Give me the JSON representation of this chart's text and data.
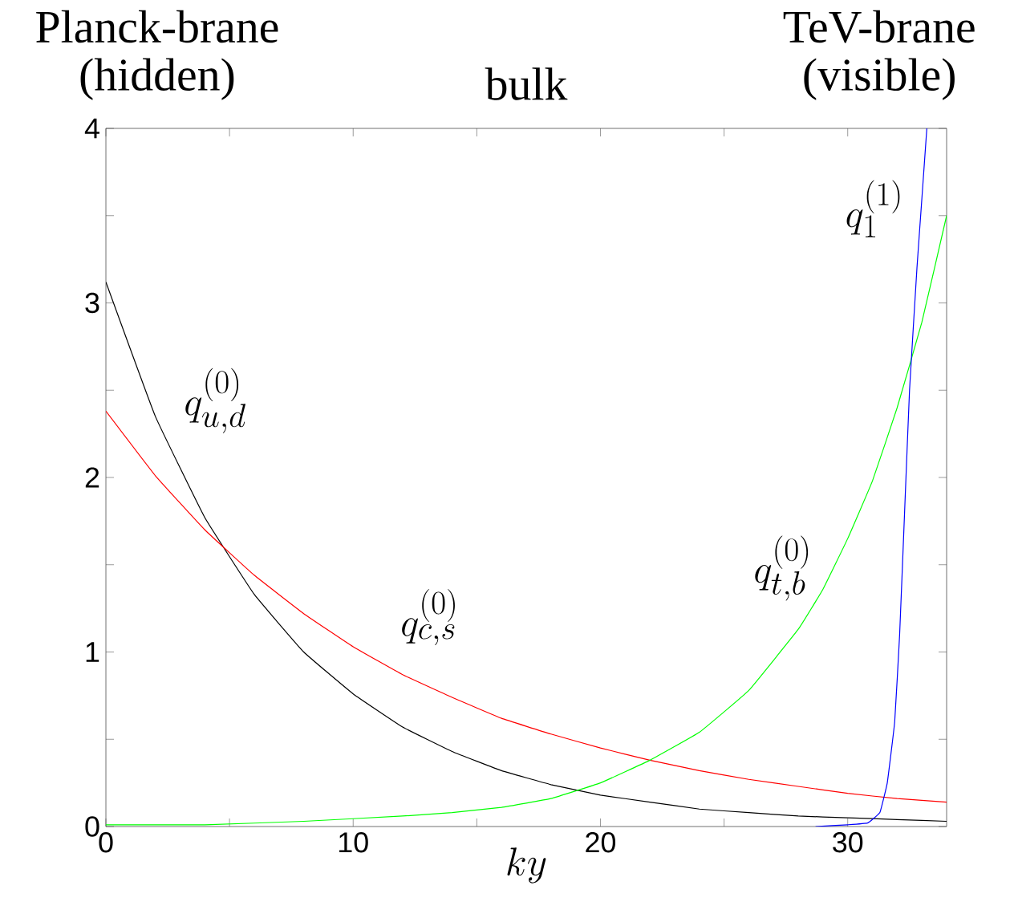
{
  "chart_data": {
    "type": "line",
    "xlabel": "ky",
    "annotations": [
      "Planck-brane (hidden)",
      "bulk",
      "TeV-brane (visible)",
      "q^{(0)}_{u,d}",
      "q^{(0)}_{c,s}",
      "q^{(0)}_{t,b}",
      "q^{(1)}_{1}"
    ],
    "xlim": [
      0,
      34
    ],
    "ylim": [
      0,
      4
    ],
    "xticks": [
      0,
      {
        "value": 5,
        "label": null
      },
      10,
      {
        "value": 15,
        "label": null
      },
      20,
      {
        "value": 25,
        "label": null
      },
      30
    ],
    "yticks": [
      0,
      {
        "value": 0.5,
        "label": null
      },
      1,
      {
        "value": 1.5,
        "label": null
      },
      2,
      {
        "value": 2.5,
        "label": null
      },
      3,
      {
        "value": 3.5,
        "label": null
      },
      4
    ],
    "marker": "none",
    "line_style": "solid",
    "series": [
      {
        "color": "#000000",
        "x": [
          0,
          2,
          4,
          6,
          8,
          10,
          12,
          14,
          16,
          18,
          20,
          22,
          24,
          26,
          28,
          30,
          32,
          34
        ],
        "values": [
          3.12,
          2.35,
          1.77,
          1.33,
          1.0,
          0.76,
          0.57,
          0.43,
          0.32,
          0.24,
          0.18,
          0.14,
          0.1,
          0.08,
          0.06,
          0.05,
          0.04,
          0.03
        ]
      },
      {
        "color": "#ff0000",
        "x": [
          0,
          2,
          4,
          6,
          8,
          10,
          12,
          14,
          16,
          18,
          20,
          22,
          24,
          26,
          28,
          30,
          32,
          34
        ],
        "values": [
          2.38,
          2.01,
          1.7,
          1.44,
          1.22,
          1.03,
          0.87,
          0.74,
          0.62,
          0.53,
          0.45,
          0.38,
          0.32,
          0.27,
          0.23,
          0.19,
          0.16,
          0.14
        ]
      },
      {
        "color": "#00ff00",
        "x": [
          0,
          4,
          8,
          12,
          14,
          16,
          18,
          20,
          22,
          24,
          26,
          28,
          29,
          30,
          31,
          32,
          33,
          34
        ],
        "values": [
          0.01,
          0.01,
          0.03,
          0.06,
          0.08,
          0.11,
          0.16,
          0.25,
          0.38,
          0.54,
          0.78,
          1.13,
          1.36,
          1.65,
          1.98,
          2.4,
          2.89,
          3.5
        ]
      },
      {
        "color": "#0000ff",
        "x": [
          28.7,
          30,
          30.8,
          31.3,
          31.6,
          31.9,
          32.1,
          32.3,
          32.5,
          32.8,
          33.0,
          33.2
        ],
        "values": [
          0,
          0.01,
          0.02,
          0.08,
          0.25,
          0.6,
          1.1,
          1.8,
          2.5,
          3.2,
          3.6,
          4.0
        ]
      }
    ]
  }
}
